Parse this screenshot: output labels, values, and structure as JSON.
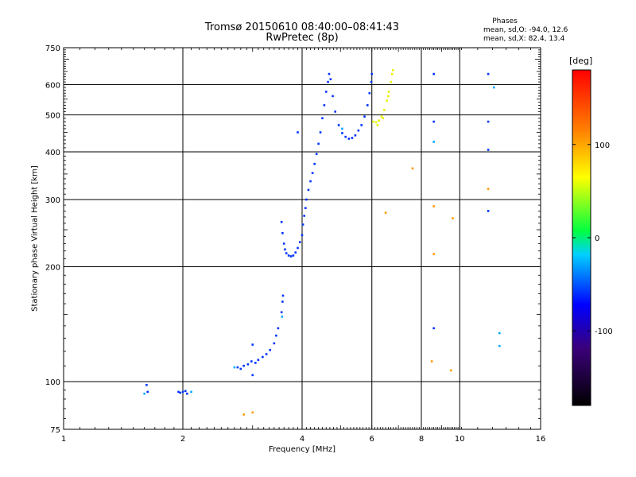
{
  "chart_data": {
    "type": "scatter",
    "title": "Tromsø 20150610 08:40:00–08:41:43",
    "subtitle": "RwPretec (8p)",
    "xlabel": "Frequency [MHz]",
    "ylabel": "Stationary phase Virtual Height [km]",
    "x_scale": "log",
    "y_scale": "log",
    "xlim": [
      1,
      16
    ],
    "ylim": [
      75,
      750
    ],
    "x_ticks": [
      1,
      2,
      4,
      6,
      8,
      10,
      16
    ],
    "y_ticks": [
      75,
      100,
      200,
      300,
      400,
      500,
      600,
      750
    ],
    "grid": true,
    "phases_box": {
      "title": "Phases",
      "line1": "mean, sd,O: -94.0, 12.6",
      "line2": "mean, sd,X:  82.4, 13.4"
    },
    "colorbar": {
      "label": "[deg]",
      "range": [
        -180,
        180
      ],
      "ticks": [
        100,
        0,
        -100
      ]
    },
    "series": [
      {
        "phase_deg": -100,
        "points": [
          [
            1.62,
            98
          ],
          [
            1.63,
            94
          ],
          [
            1.95,
            94
          ],
          [
            1.97,
            93.5
          ],
          [
            2.0,
            94
          ],
          [
            2.03,
            94.5
          ],
          [
            2.05,
            93
          ],
          [
            2.75,
            109
          ],
          [
            2.8,
            108
          ],
          [
            2.85,
            110
          ],
          [
            2.92,
            111
          ],
          [
            2.98,
            113
          ],
          [
            3.0,
            104
          ],
          [
            3.0,
            125
          ],
          [
            3.05,
            112
          ],
          [
            3.1,
            114
          ],
          [
            3.18,
            116
          ],
          [
            3.25,
            118
          ],
          [
            3.32,
            121
          ],
          [
            3.4,
            126
          ],
          [
            3.44,
            132
          ],
          [
            3.48,
            138
          ],
          [
            3.55,
            152
          ],
          [
            3.57,
            162
          ],
          [
            3.58,
            168
          ],
          [
            3.55,
            262
          ],
          [
            3.57,
            245
          ],
          [
            3.6,
            230
          ],
          [
            3.62,
            222
          ],
          [
            3.65,
            217
          ],
          [
            3.7,
            214
          ],
          [
            3.75,
            213
          ],
          [
            3.8,
            214
          ],
          [
            3.85,
            218
          ],
          [
            3.9,
            224
          ],
          [
            3.95,
            232
          ],
          [
            4.0,
            242
          ],
          [
            4.02,
            258
          ],
          [
            4.05,
            272
          ],
          [
            4.08,
            285
          ],
          [
            4.1,
            300
          ],
          [
            4.15,
            318
          ],
          [
            4.2,
            335
          ],
          [
            4.25,
            352
          ],
          [
            4.3,
            372
          ],
          [
            4.35,
            395
          ],
          [
            4.4,
            420
          ],
          [
            4.45,
            450
          ],
          [
            4.5,
            490
          ],
          [
            4.55,
            530
          ],
          [
            4.6,
            575
          ],
          [
            4.65,
            610
          ],
          [
            4.68,
            640
          ],
          [
            4.72,
            620
          ],
          [
            4.78,
            560
          ],
          [
            4.85,
            510
          ],
          [
            4.95,
            470
          ],
          [
            5.05,
            448
          ],
          [
            5.15,
            438
          ],
          [
            5.25,
            433
          ],
          [
            5.35,
            435
          ],
          [
            5.45,
            442
          ],
          [
            5.55,
            455
          ],
          [
            5.65,
            470
          ],
          [
            5.75,
            495
          ],
          [
            5.85,
            530
          ],
          [
            5.92,
            570
          ],
          [
            5.98,
            610
          ],
          [
            6.0,
            640
          ],
          [
            3.9,
            450
          ],
          [
            8.6,
            640
          ],
          [
            8.6,
            480
          ],
          [
            8.6,
            138
          ],
          [
            11.8,
            640
          ],
          [
            11.8,
            480
          ],
          [
            11.8,
            405
          ],
          [
            11.8,
            280
          ]
        ]
      },
      {
        "phase_deg": -40,
        "points": [
          [
            1.6,
            93
          ],
          [
            2.1,
            94
          ],
          [
            2.7,
            109
          ],
          [
            3.56,
            148
          ],
          [
            5.05,
            460
          ],
          [
            8.6,
            425
          ],
          [
            12.6,
            134
          ],
          [
            12.6,
            124
          ],
          [
            12.2,
            590
          ]
        ]
      },
      {
        "phase_deg": 110,
        "points": [
          [
            6.05,
            480
          ],
          [
            6.15,
            478
          ],
          [
            6.25,
            483
          ],
          [
            6.35,
            495
          ],
          [
            6.45,
            515
          ],
          [
            6.55,
            545
          ],
          [
            6.62,
            575
          ],
          [
            6.7,
            610
          ],
          [
            6.75,
            640
          ],
          [
            6.78,
            655
          ],
          [
            6.2,
            470
          ],
          [
            6.4,
            490
          ],
          [
            6.6,
            560
          ]
        ]
      },
      {
        "phase_deg": 140,
        "points": [
          [
            2.85,
            82
          ],
          [
            3.0,
            83
          ],
          [
            6.5,
            277
          ],
          [
            7.6,
            362
          ],
          [
            8.5,
            113
          ],
          [
            8.6,
            288
          ],
          [
            8.6,
            216
          ],
          [
            9.5,
            107
          ],
          [
            9.6,
            268
          ],
          [
            11.8,
            320
          ]
        ]
      }
    ]
  }
}
